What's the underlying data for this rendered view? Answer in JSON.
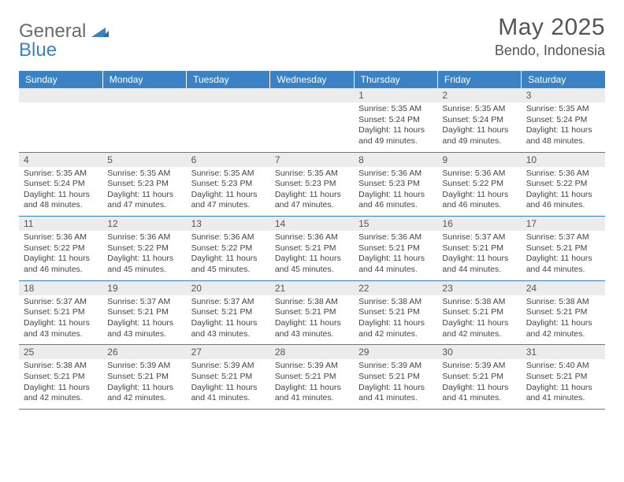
{
  "brand": {
    "general": "General",
    "blue": "Blue",
    "triangle_color": "#3b82c4"
  },
  "title": "May 2025",
  "location": "Bendo, Indonesia",
  "weekdays": [
    "Sunday",
    "Monday",
    "Tuesday",
    "Wednesday",
    "Thursday",
    "Friday",
    "Saturday"
  ],
  "colors": {
    "header_bg": "#3b82c4",
    "header_text": "#ffffff",
    "daynum_bg": "#ececec",
    "row_divider": "#3b82c4",
    "body_text": "#444444"
  },
  "fonts": {
    "title_size": 30,
    "location_size": 18,
    "weekday_size": 12,
    "daynum_size": 12,
    "cell_size": 10.5
  },
  "layout": {
    "cols": 7,
    "rows": 5,
    "leading_blanks": 4
  },
  "days": [
    {
      "n": "1",
      "sunrise": "5:35 AM",
      "sunset": "5:24 PM",
      "daylight": "11 hours and 49 minutes."
    },
    {
      "n": "2",
      "sunrise": "5:35 AM",
      "sunset": "5:24 PM",
      "daylight": "11 hours and 49 minutes."
    },
    {
      "n": "3",
      "sunrise": "5:35 AM",
      "sunset": "5:24 PM",
      "daylight": "11 hours and 48 minutes."
    },
    {
      "n": "4",
      "sunrise": "5:35 AM",
      "sunset": "5:24 PM",
      "daylight": "11 hours and 48 minutes."
    },
    {
      "n": "5",
      "sunrise": "5:35 AM",
      "sunset": "5:23 PM",
      "daylight": "11 hours and 47 minutes."
    },
    {
      "n": "6",
      "sunrise": "5:35 AM",
      "sunset": "5:23 PM",
      "daylight": "11 hours and 47 minutes."
    },
    {
      "n": "7",
      "sunrise": "5:35 AM",
      "sunset": "5:23 PM",
      "daylight": "11 hours and 47 minutes."
    },
    {
      "n": "8",
      "sunrise": "5:36 AM",
      "sunset": "5:23 PM",
      "daylight": "11 hours and 46 minutes."
    },
    {
      "n": "9",
      "sunrise": "5:36 AM",
      "sunset": "5:22 PM",
      "daylight": "11 hours and 46 minutes."
    },
    {
      "n": "10",
      "sunrise": "5:36 AM",
      "sunset": "5:22 PM",
      "daylight": "11 hours and 46 minutes."
    },
    {
      "n": "11",
      "sunrise": "5:36 AM",
      "sunset": "5:22 PM",
      "daylight": "11 hours and 46 minutes."
    },
    {
      "n": "12",
      "sunrise": "5:36 AM",
      "sunset": "5:22 PM",
      "daylight": "11 hours and 45 minutes."
    },
    {
      "n": "13",
      "sunrise": "5:36 AM",
      "sunset": "5:22 PM",
      "daylight": "11 hours and 45 minutes."
    },
    {
      "n": "14",
      "sunrise": "5:36 AM",
      "sunset": "5:21 PM",
      "daylight": "11 hours and 45 minutes."
    },
    {
      "n": "15",
      "sunrise": "5:36 AM",
      "sunset": "5:21 PM",
      "daylight": "11 hours and 44 minutes."
    },
    {
      "n": "16",
      "sunrise": "5:37 AM",
      "sunset": "5:21 PM",
      "daylight": "11 hours and 44 minutes."
    },
    {
      "n": "17",
      "sunrise": "5:37 AM",
      "sunset": "5:21 PM",
      "daylight": "11 hours and 44 minutes."
    },
    {
      "n": "18",
      "sunrise": "5:37 AM",
      "sunset": "5:21 PM",
      "daylight": "11 hours and 43 minutes."
    },
    {
      "n": "19",
      "sunrise": "5:37 AM",
      "sunset": "5:21 PM",
      "daylight": "11 hours and 43 minutes."
    },
    {
      "n": "20",
      "sunrise": "5:37 AM",
      "sunset": "5:21 PM",
      "daylight": "11 hours and 43 minutes."
    },
    {
      "n": "21",
      "sunrise": "5:38 AM",
      "sunset": "5:21 PM",
      "daylight": "11 hours and 43 minutes."
    },
    {
      "n": "22",
      "sunrise": "5:38 AM",
      "sunset": "5:21 PM",
      "daylight": "11 hours and 42 minutes."
    },
    {
      "n": "23",
      "sunrise": "5:38 AM",
      "sunset": "5:21 PM",
      "daylight": "11 hours and 42 minutes."
    },
    {
      "n": "24",
      "sunrise": "5:38 AM",
      "sunset": "5:21 PM",
      "daylight": "11 hours and 42 minutes."
    },
    {
      "n": "25",
      "sunrise": "5:38 AM",
      "sunset": "5:21 PM",
      "daylight": "11 hours and 42 minutes."
    },
    {
      "n": "26",
      "sunrise": "5:39 AM",
      "sunset": "5:21 PM",
      "daylight": "11 hours and 42 minutes."
    },
    {
      "n": "27",
      "sunrise": "5:39 AM",
      "sunset": "5:21 PM",
      "daylight": "11 hours and 41 minutes."
    },
    {
      "n": "28",
      "sunrise": "5:39 AM",
      "sunset": "5:21 PM",
      "daylight": "11 hours and 41 minutes."
    },
    {
      "n": "29",
      "sunrise": "5:39 AM",
      "sunset": "5:21 PM",
      "daylight": "11 hours and 41 minutes."
    },
    {
      "n": "30",
      "sunrise": "5:39 AM",
      "sunset": "5:21 PM",
      "daylight": "11 hours and 41 minutes."
    },
    {
      "n": "31",
      "sunrise": "5:40 AM",
      "sunset": "5:21 PM",
      "daylight": "11 hours and 41 minutes."
    }
  ],
  "labels": {
    "sunrise": "Sunrise:",
    "sunset": "Sunset:",
    "daylight": "Daylight:"
  }
}
